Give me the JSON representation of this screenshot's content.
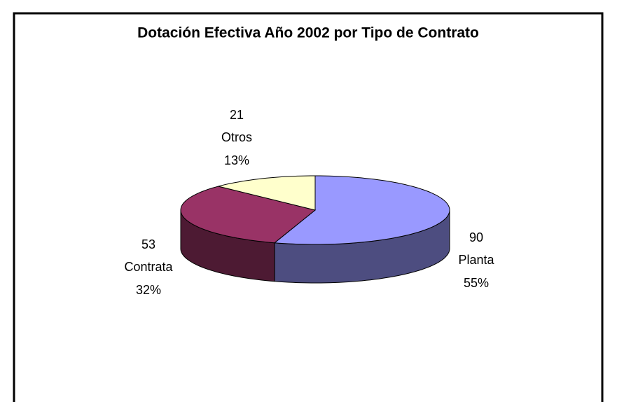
{
  "chart_data": {
    "type": "pie3d",
    "title": "Dotación Efectiva Año 2002 por Tipo de Contrato",
    "categories": [
      "Planta",
      "Contrata",
      "Otros"
    ],
    "values": [
      90,
      53,
      21
    ],
    "percent_labels": [
      "55%",
      "32%",
      "13%"
    ],
    "colors": [
      "#9999ff",
      "#993366",
      "#ffffcc"
    ],
    "side_colors": [
      "#4d4d80",
      "#4d1a33",
      "#80806a"
    ]
  }
}
